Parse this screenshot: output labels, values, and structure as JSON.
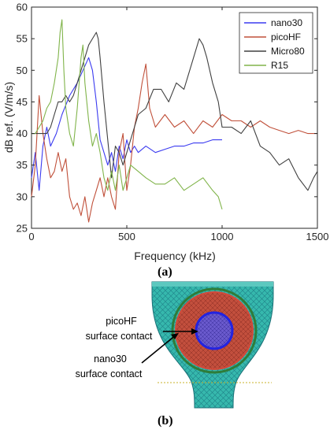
{
  "captions": {
    "a": "(a)",
    "b": "(b)"
  },
  "annotations": {
    "picoHF_line1": "picoHF",
    "picoHF_line2": "surface contact",
    "nano30_line1": "nano30",
    "nano30_line2": "surface contact"
  },
  "chart_data": {
    "type": "line",
    "title": "",
    "xlabel": "Frequency  (kHz)",
    "ylabel": "dB ref. (V/m/s)",
    "xlim": [
      0,
      1500
    ],
    "ylim": [
      25,
      60
    ],
    "xticks": [
      0,
      500,
      1000,
      1500
    ],
    "yticks": [
      25,
      30,
      35,
      40,
      45,
      50,
      55,
      60
    ],
    "grid": false,
    "legend": "top-right",
    "series": [
      {
        "name": "nano30",
        "color": "#3b3bf0",
        "x": [
          0,
          20,
          40,
          60,
          80,
          100,
          130,
          160,
          200,
          240,
          270,
          300,
          320,
          340,
          360,
          380,
          400,
          420,
          440,
          460,
          480,
          500,
          520,
          540,
          560,
          600,
          650,
          700,
          750,
          800,
          850,
          900,
          950,
          1000
        ],
        "y": [
          33,
          37,
          31,
          38,
          41,
          38,
          40,
          43,
          46,
          48,
          50,
          52,
          50,
          45,
          39,
          37,
          35,
          37,
          34,
          38,
          36,
          39,
          37,
          38,
          37,
          38,
          37,
          37.5,
          38,
          38,
          38.5,
          38.5,
          39,
          39
        ]
      },
      {
        "name": "picoHF",
        "color": "#c0503a",
        "x": [
          0,
          20,
          40,
          60,
          80,
          100,
          120,
          140,
          160,
          180,
          200,
          220,
          240,
          260,
          280,
          300,
          320,
          340,
          360,
          380,
          400,
          420,
          440,
          460,
          480,
          500,
          520,
          540,
          560,
          580,
          600,
          620,
          650,
          700,
          750,
          800,
          850,
          900,
          950,
          1000,
          1050,
          1100,
          1150,
          1200,
          1250,
          1300,
          1350,
          1400,
          1450,
          1500
        ],
        "y": [
          30,
          35,
          46,
          40,
          36,
          33,
          34,
          37,
          34,
          36,
          30,
          28,
          29,
          27,
          30,
          26,
          29,
          31,
          33,
          30,
          33,
          30,
          28,
          37,
          40,
          31,
          35,
          41,
          44,
          48,
          51,
          44,
          41,
          43,
          41,
          42,
          40,
          42,
          41,
          43,
          42,
          42,
          41,
          42,
          41,
          40.5,
          40,
          40.5,
          40,
          40
        ]
      },
      {
        "name": "Micro80",
        "color": "#404040",
        "x": [
          0,
          20,
          40,
          60,
          80,
          100,
          120,
          140,
          160,
          180,
          200,
          220,
          240,
          260,
          280,
          300,
          320,
          340,
          350,
          360,
          380,
          400,
          420,
          440,
          460,
          480,
          500,
          520,
          540,
          560,
          600,
          640,
          680,
          720,
          760,
          800,
          840,
          880,
          900,
          920,
          950,
          980,
          1000,
          1050,
          1100,
          1150,
          1200,
          1250,
          1300,
          1350,
          1400,
          1450,
          1480,
          1500
        ],
        "y": [
          40,
          40,
          40,
          40,
          40,
          41,
          43,
          45,
          45,
          46,
          45,
          46,
          48,
          50,
          52,
          54,
          55,
          56,
          55,
          52,
          45,
          39,
          33,
          38,
          37,
          35,
          37,
          39,
          41,
          43,
          44,
          47,
          47,
          45,
          48,
          47,
          51,
          55,
          54,
          52,
          48,
          45,
          41,
          41,
          40,
          42,
          38,
          37,
          35,
          36,
          33,
          31,
          33,
          34
        ]
      },
      {
        "name": "R15",
        "color": "#80b44a",
        "x": [
          0,
          20,
          40,
          60,
          80,
          100,
          120,
          140,
          150,
          160,
          170,
          180,
          200,
          220,
          240,
          260,
          270,
          280,
          300,
          320,
          340,
          360,
          380,
          400,
          420,
          440,
          460,
          480,
          500,
          520,
          560,
          600,
          650,
          700,
          750,
          800,
          850,
          900,
          950,
          980,
          1000
        ],
        "y": [
          40,
          40,
          41,
          42,
          44,
          45,
          48,
          52,
          56,
          58,
          50,
          44,
          40,
          38,
          44,
          52,
          54,
          48,
          42,
          38,
          40,
          37,
          33,
          31,
          34,
          31,
          35,
          31,
          33,
          35,
          34,
          33,
          32,
          32,
          33,
          31,
          32,
          33,
          31,
          30,
          28
        ]
      }
    ]
  },
  "figure_b": {
    "type": "fem-mesh-diagram",
    "colors": {
      "mesh": "#2cb5a8",
      "red_contact": "#d24a3a",
      "blue_contact": "#3a3ad8",
      "green_ring": "#2e7d3a"
    }
  }
}
